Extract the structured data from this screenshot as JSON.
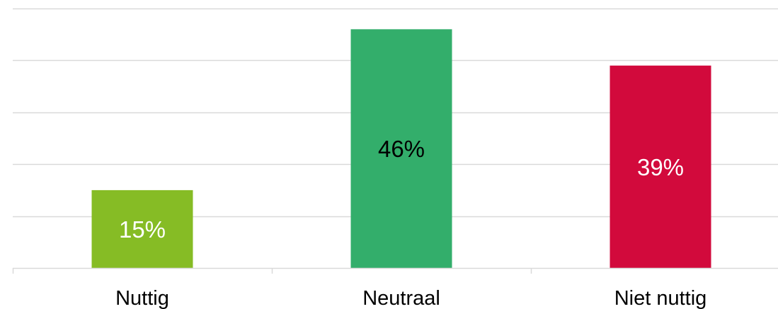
{
  "chart_data": {
    "type": "bar",
    "categories": [
      "Nuttig",
      "Neutraal",
      "Niet nuttig"
    ],
    "values": [
      15,
      46,
      39
    ],
    "data_labels": [
      "15%",
      "46%",
      "39%"
    ],
    "bar_colors": [
      "#86bc25",
      "#33ae6b",
      "#d20a3c"
    ],
    "label_colors": [
      "#ffffff",
      "#000000",
      "#ffffff"
    ],
    "title": "",
    "xlabel": "",
    "ylabel": "",
    "ylim": [
      0,
      50
    ],
    "gridline_step": 10,
    "grid": true,
    "legend": "none"
  }
}
